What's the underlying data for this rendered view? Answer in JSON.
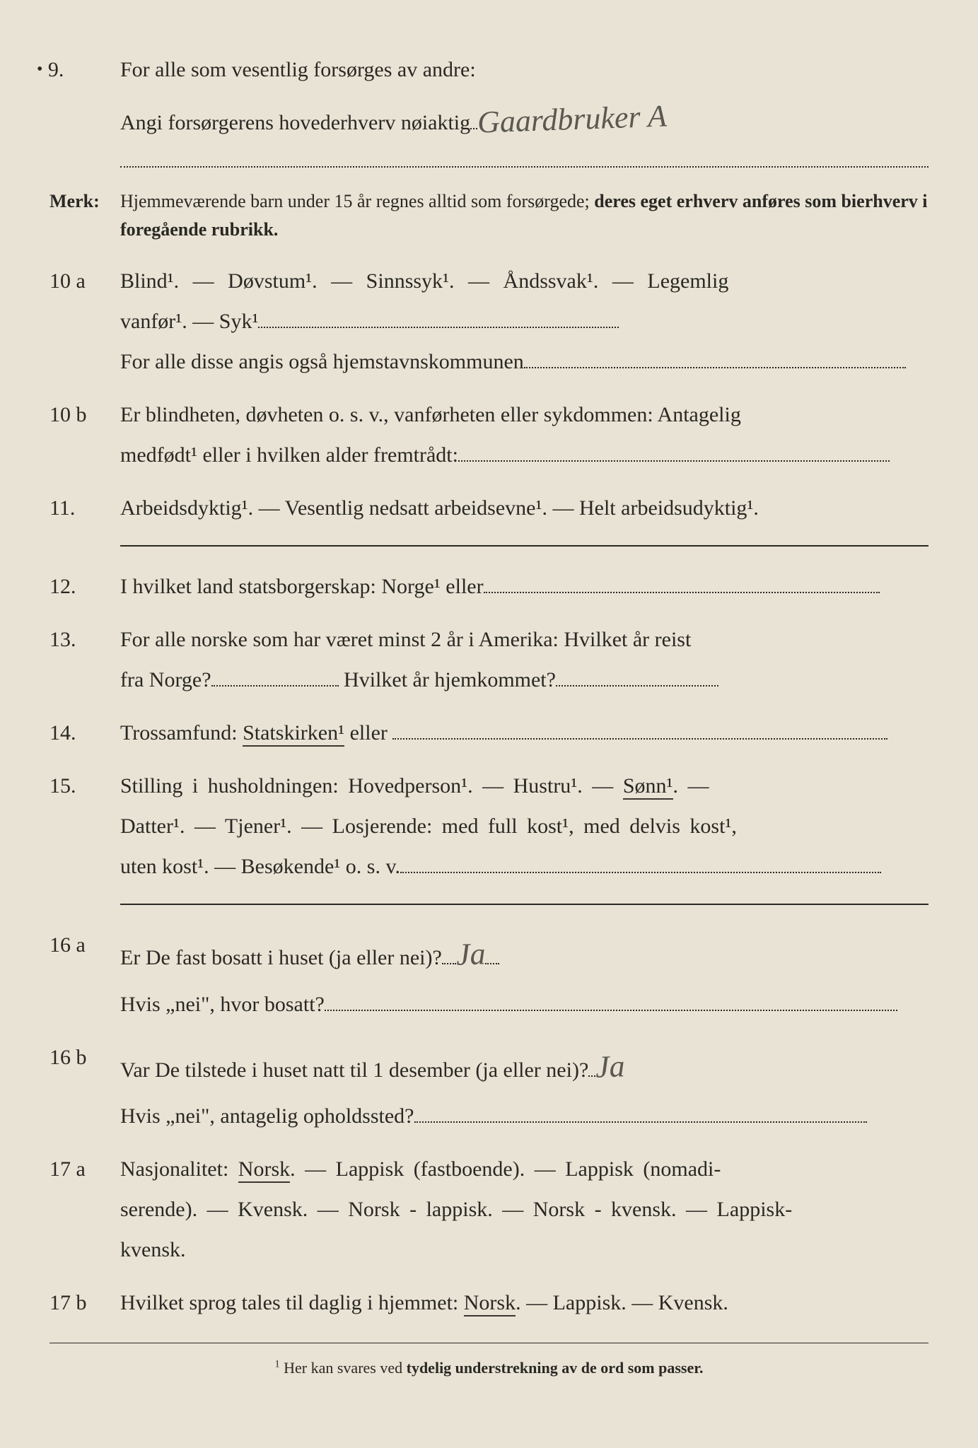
{
  "q9": {
    "num": "9.",
    "line1": "For alle som vesentlig forsørges av andre:",
    "line2_pre": "Angi forsørgerens hovederhverv nøiaktig",
    "handwritten": "Gaardbruker A"
  },
  "merk": {
    "label": "Merk:",
    "text1": "Hjemmeværende barn under 15 år regnes alltid som forsørgede; ",
    "text1b": "deres eget erhverv anføres som bierhverv i foregående rubrikk."
  },
  "q10a": {
    "num": "10 a",
    "l1": "Blind¹.   —   Døvstum¹.   —   Sinnssyk¹.   —   Åndssvak¹.   —   Legemlig",
    "l2_pre": "vanfør¹.   —   Syk¹",
    "l3_pre": "For alle disse angis også hjemstavnskommunen"
  },
  "q10b": {
    "num": "10 b",
    "l1": "Er blindheten, døvheten o. s. v., vanførheten eller sykdommen: Antagelig",
    "l2_pre": "medfødt¹ eller i hvilken alder fremtrådt:"
  },
  "q11": {
    "num": "11.",
    "l1": "Arbeidsdyktig¹. — Vesentlig nedsatt arbeidsevne¹. — Helt arbeidsudyktig¹."
  },
  "q12": {
    "num": "12.",
    "l1_pre": "I hvilket land statsborgerskap:  Norge¹ eller"
  },
  "q13": {
    "num": "13.",
    "l1": "For alle norske som har været minst 2 år i Amerika:  Hvilket år reist",
    "l2a": "fra Norge?",
    "l2b": " Hvilket år hjemkommet?"
  },
  "q14": {
    "num": "14.",
    "l1a": "Trossamfund:  ",
    "l1b": "Statskirken¹",
    "l1c": " eller "
  },
  "q15": {
    "num": "15.",
    "l1a": "Stilling  i  husholdningen:   Hovedperson¹.  —  Hustru¹.  —  ",
    "l1b": "Sønn¹",
    "l1c": ".  —",
    "l2": "Datter¹.  —  Tjener¹.  —  Losjerende:   med full kost¹, med delvis kost¹,",
    "l3_pre": "uten  kost¹.  —  Besøkende¹ o. s. v."
  },
  "q16a": {
    "num": "16 a",
    "l1_pre": "Er De fast bosatt i huset (ja eller nei)?",
    "hand": "Ja",
    "l2_pre": "Hvis „nei\", hvor bosatt?"
  },
  "q16b": {
    "num": "16 b",
    "l1_pre": "Var De tilstede i huset natt til 1 desember (ja eller nei)?",
    "hand": "Ja",
    "l2_pre": "Hvis „nei\", antagelig opholdssted?"
  },
  "q17a": {
    "num": "17 a",
    "l1a": "Nasjonalitet:   ",
    "l1b": "Norsk",
    "l1c": ".  —  Lappisk (fastboende).  —  Lappisk (nomadi-",
    "l2": "serende).  — Kvensk.  —  Norsk - lappisk.  —  Norsk - kvensk.  —  Lappisk-",
    "l3": "kvensk."
  },
  "q17b": {
    "num": "17 b",
    "l1a": "Hvilket sprog tales til daglig i hjemmet: ",
    "l1b": "Norsk",
    "l1c": ". — Lappisk. — Kvensk."
  },
  "footnote": {
    "sup": "1",
    "text_a": "  Her kan svares ved ",
    "text_b": "tydelig understrekning av de ord som passer."
  }
}
